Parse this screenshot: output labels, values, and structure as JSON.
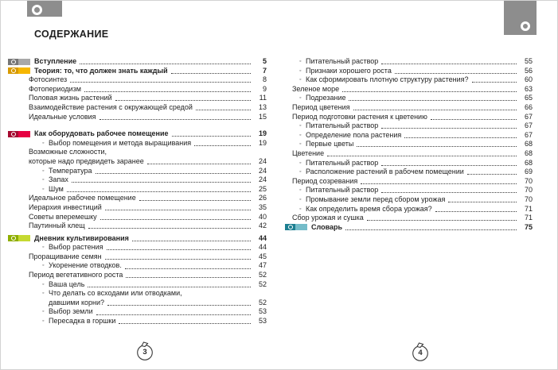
{
  "title": "СОДЕРЖАНИЕ",
  "colors": {
    "tab_gray": "#8d8d8d",
    "text": "#232323",
    "markers": {
      "gray": {
        "square": "#767676",
        "bar": "#a8a8a8"
      },
      "yellow": {
        "square": "#d89a00",
        "bar": "#f6b600"
      },
      "red": {
        "square": "#a50a30",
        "bar": "#e60042"
      },
      "green": {
        "square": "#8fae00",
        "bar": "#c5d931"
      },
      "teal": {
        "square": "#1d7f91",
        "bar": "#74bcc9"
      }
    }
  },
  "left_page": {
    "number": "3",
    "entries": [
      {
        "label": "Вступление",
        "page": "5",
        "style": "head",
        "marker": "gray"
      },
      {
        "label": "Теория: то, что должен знать каждый",
        "page": "7",
        "style": "head",
        "marker": "yellow"
      },
      {
        "label": "Фотосинтез",
        "page": "8",
        "style": "top"
      },
      {
        "label": "Фотопериодизм",
        "page": "9",
        "style": "top"
      },
      {
        "label": "Половая жизнь растений",
        "page": "11",
        "style": "top"
      },
      {
        "label": "Взаимодействие растения с окружающей средой",
        "page": "13",
        "style": "top"
      },
      {
        "label": "Идеальные условия",
        "page": "15",
        "style": "top"
      },
      {
        "label": "Как оборудовать рабочее помещение",
        "page": "19",
        "style": "head",
        "marker": "red",
        "gap": "lg"
      },
      {
        "label": "Выбор помещения и метода выращивания",
        "page": "19",
        "style": "sub",
        "bullet": true
      },
      {
        "label": "Возможные сложности,",
        "page": "",
        "style": "top",
        "dots": false
      },
      {
        "label": "которые надо предвидеть заранее",
        "page": "24",
        "style": "top"
      },
      {
        "label": "Температура",
        "page": "24",
        "style": "sub",
        "bullet": true
      },
      {
        "label": "Запах",
        "page": "24",
        "style": "sub",
        "bullet": true
      },
      {
        "label": "Шум",
        "page": "25",
        "style": "sub",
        "bullet": true
      },
      {
        "label": "Идеальное рабочее помещение",
        "page": "26",
        "style": "top"
      },
      {
        "label": "Иерархия инвестиций",
        "page": "35",
        "style": "top"
      },
      {
        "label": "Советы вперемешку",
        "page": "40",
        "style": "top"
      },
      {
        "label": "Паутинный клещ",
        "page": "42",
        "style": "top"
      },
      {
        "label": "Дневник культивирования",
        "page": "44",
        "style": "head",
        "marker": "green",
        "gap": "sm"
      },
      {
        "label": "Выбор растения",
        "page": "44",
        "style": "sub",
        "bullet": true
      },
      {
        "label": "Проращивание семян",
        "page": "45",
        "style": "top"
      },
      {
        "label": "Укоренение отводков.",
        "page": "47",
        "style": "sub",
        "bullet": true
      },
      {
        "label": "Период вегетативного роста",
        "page": "52",
        "style": "top"
      },
      {
        "label": "Ваша цель",
        "page": "52",
        "style": "sub",
        "bullet": true
      },
      {
        "label": "Что делать со всходами или отводками,",
        "page": "",
        "style": "sub",
        "bullet": true,
        "dots": false
      },
      {
        "label": "давшими корни?",
        "page": "52",
        "style": "sub"
      },
      {
        "label": "Выбор земли",
        "page": "53",
        "style": "sub",
        "bullet": true
      },
      {
        "label": "Пересадка в горшки",
        "page": "53",
        "style": "sub",
        "bullet": true
      }
    ]
  },
  "right_page": {
    "number": "4",
    "entries": [
      {
        "label": "Питательный раствор",
        "page": "55",
        "style": "sub",
        "bullet": true
      },
      {
        "label": "Признаки хорошего роста",
        "page": "56",
        "style": "sub",
        "bullet": true
      },
      {
        "label": "Как сформировать плотную структуру растения?",
        "page": "60",
        "style": "sub",
        "bullet": true
      },
      {
        "label": "Зеленое море",
        "page": "63",
        "style": "top"
      },
      {
        "label": "Подрезание",
        "page": "65",
        "style": "sub",
        "bullet": true
      },
      {
        "label": "Период цветения",
        "page": "66",
        "style": "top"
      },
      {
        "label": "Период подготовки растения к цветению",
        "page": "67",
        "style": "top"
      },
      {
        "label": "Питательный раствор",
        "page": "67",
        "style": "sub",
        "bullet": true
      },
      {
        "label": "Определение пола растения",
        "page": "67",
        "style": "sub",
        "bullet": true
      },
      {
        "label": "Первые цветы",
        "page": "68",
        "style": "sub",
        "bullet": true
      },
      {
        "label": "Цветение",
        "page": "68",
        "style": "top"
      },
      {
        "label": "Питательный раствор",
        "page": "68",
        "style": "sub",
        "bullet": true
      },
      {
        "label": "Расположение растений в рабочем помещении",
        "page": "69",
        "style": "sub",
        "bullet": true
      },
      {
        "label": "Период созревания",
        "page": "70",
        "style": "top"
      },
      {
        "label": "Питательный раствор",
        "page": "70",
        "style": "sub",
        "bullet": true
      },
      {
        "label": "Промывание земли перед сбором урожая",
        "page": "70",
        "style": "sub",
        "bullet": true
      },
      {
        "label": "Как определить время сбора урожая?",
        "page": "71",
        "style": "sub",
        "bullet": true
      },
      {
        "label": "Сбор урожая и сушка",
        "page": "71",
        "style": "top"
      },
      {
        "label": "Словарь",
        "page": "75",
        "style": "head",
        "marker": "teal"
      }
    ]
  }
}
